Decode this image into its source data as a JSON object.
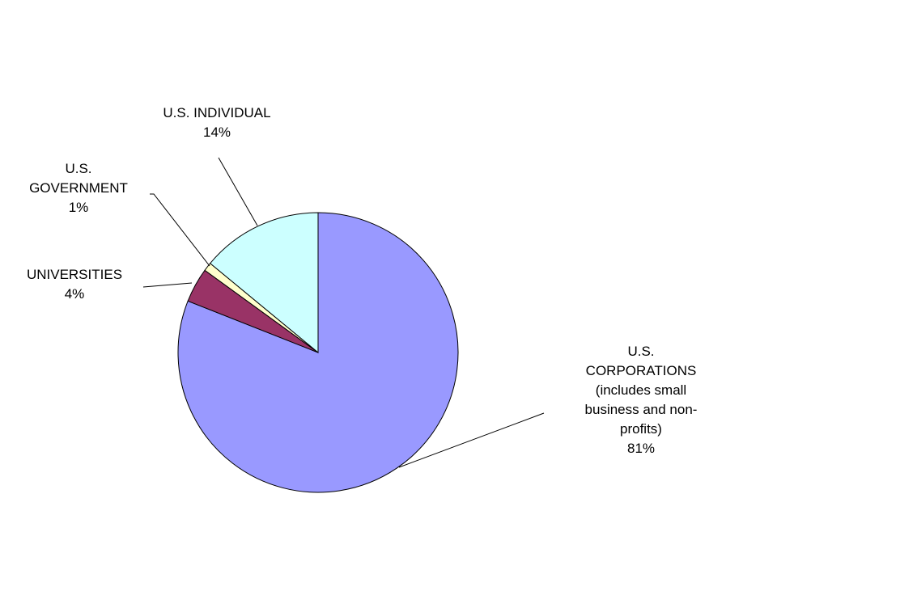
{
  "chart_data": {
    "type": "pie",
    "title": "",
    "start_angle_deg": 0,
    "direction": "clockwise",
    "legend": "none",
    "slices": [
      {
        "key": "corporations",
        "label_lines": [
          "U.S.",
          "CORPORATIONS",
          "(includes small",
          "business and non-",
          "profits)"
        ],
        "percent_label": "81%",
        "value": 81,
        "color": "#9999FF"
      },
      {
        "key": "universities",
        "label_lines": [
          "UNIVERSITIES"
        ],
        "percent_label": "4%",
        "value": 4,
        "color": "#993366"
      },
      {
        "key": "government",
        "label_lines": [
          "U.S.",
          "GOVERNMENT"
        ],
        "percent_label": "1%",
        "value": 1,
        "color": "#FFFFCC"
      },
      {
        "key": "individual",
        "label_lines": [
          "U.S. INDIVIDUAL"
        ],
        "percent_label": "14%",
        "value": 14,
        "color": "#CCFFFF"
      }
    ]
  }
}
